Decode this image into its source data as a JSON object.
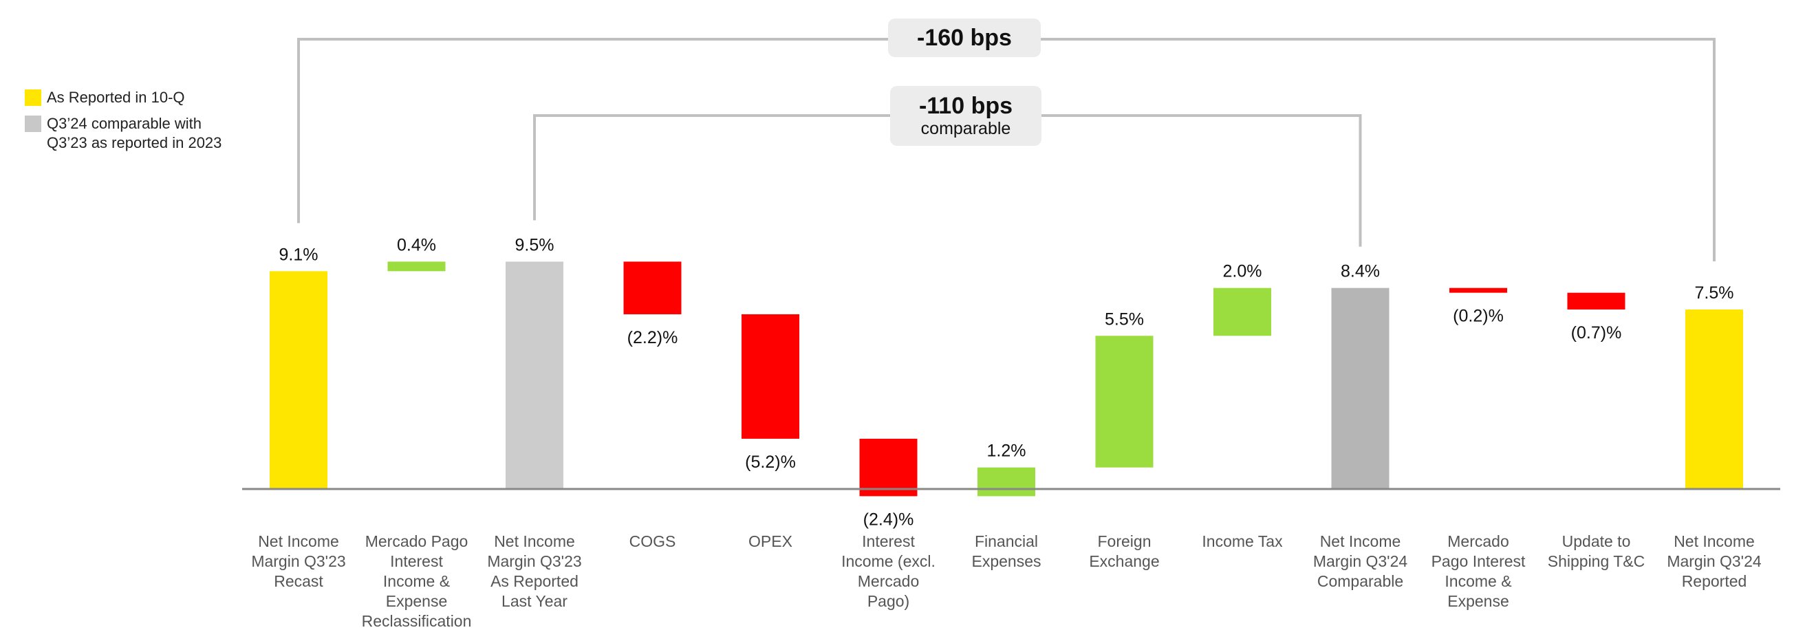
{
  "legend": {
    "items": [
      {
        "label": "As Reported in 10-Q",
        "color": "#FFE600"
      },
      {
        "label": "Q3’24 comparable with Q3’23 as reported in 2023",
        "color": "#C8C8C8"
      }
    ]
  },
  "callouts": {
    "total": {
      "value": "-160 bps"
    },
    "comparable": {
      "value": "-110 bps",
      "sublabel": "comparable"
    }
  },
  "colors": {
    "yellow": "#FFE600",
    "gray_light": "#CCCCCC",
    "gray_dark": "#B5B5B5",
    "green": "#9BDD3F",
    "red": "#FF0000",
    "connector": "#C0C0C0",
    "axis": "#888888"
  },
  "chart_data": {
    "type": "waterfall",
    "unit": "%",
    "categories": [
      "Net Income Margin Q3'23 Recast",
      "Mercado Pago Interest Income & Expense Reclassification",
      "Net Income Margin Q3'23 As Reported Last Year",
      "COGS",
      "OPEX",
      "Interest Income (excl. Mercado Pago)",
      "Financial Expenses",
      "Foreign Exchange",
      "Income Tax",
      "Net Income Margin Q3'24 Comparable",
      "Mercado Pago Interest Income & Expense",
      "Update to Shipping T&C",
      "Net Income Margin Q3'24 Reported"
    ],
    "category_lines": [
      [
        "Net Income",
        "Margin Q3'23",
        "Recast"
      ],
      [
        "Mercado Pago",
        "Interest",
        "Income &",
        "Expense",
        "Reclassification"
      ],
      [
        "Net Income",
        "Margin Q3'23",
        "As Reported",
        "Last Year"
      ],
      [
        "COGS"
      ],
      [
        "OPEX"
      ],
      [
        "Interest",
        "Income (excl.",
        "Mercado",
        "Pago)"
      ],
      [
        "Financial",
        "Expenses"
      ],
      [
        "Foreign",
        "Exchange"
      ],
      [
        "Income Tax"
      ],
      [
        "Net Income",
        "Margin Q3'24",
        "Comparable"
      ],
      [
        "Mercado",
        "Pago Interest",
        "Income &",
        "Expense"
      ],
      [
        "Update to",
        "Shipping T&C"
      ],
      [
        "Net Income",
        "Margin Q3'24",
        "Reported"
      ]
    ],
    "values": [
      9.1,
      0.4,
      9.5,
      -2.2,
      -5.2,
      -2.4,
      1.2,
      5.5,
      2.0,
      8.4,
      -0.2,
      -0.7,
      7.5
    ],
    "kinds": [
      "total-reported",
      "increase",
      "total-comparable",
      "decrease",
      "decrease",
      "decrease",
      "increase",
      "increase",
      "increase",
      "total-comparable-dark",
      "decrease",
      "decrease",
      "total-reported"
    ],
    "data_labels": [
      "9.1%",
      "0.4%",
      "9.5%",
      "(2.2)%",
      "(5.2)%",
      "(2.4)%",
      "1.2%",
      "5.5%",
      "2.0%",
      "8.4%",
      "(0.2)%",
      "(0.7)%",
      "7.5%"
    ]
  }
}
